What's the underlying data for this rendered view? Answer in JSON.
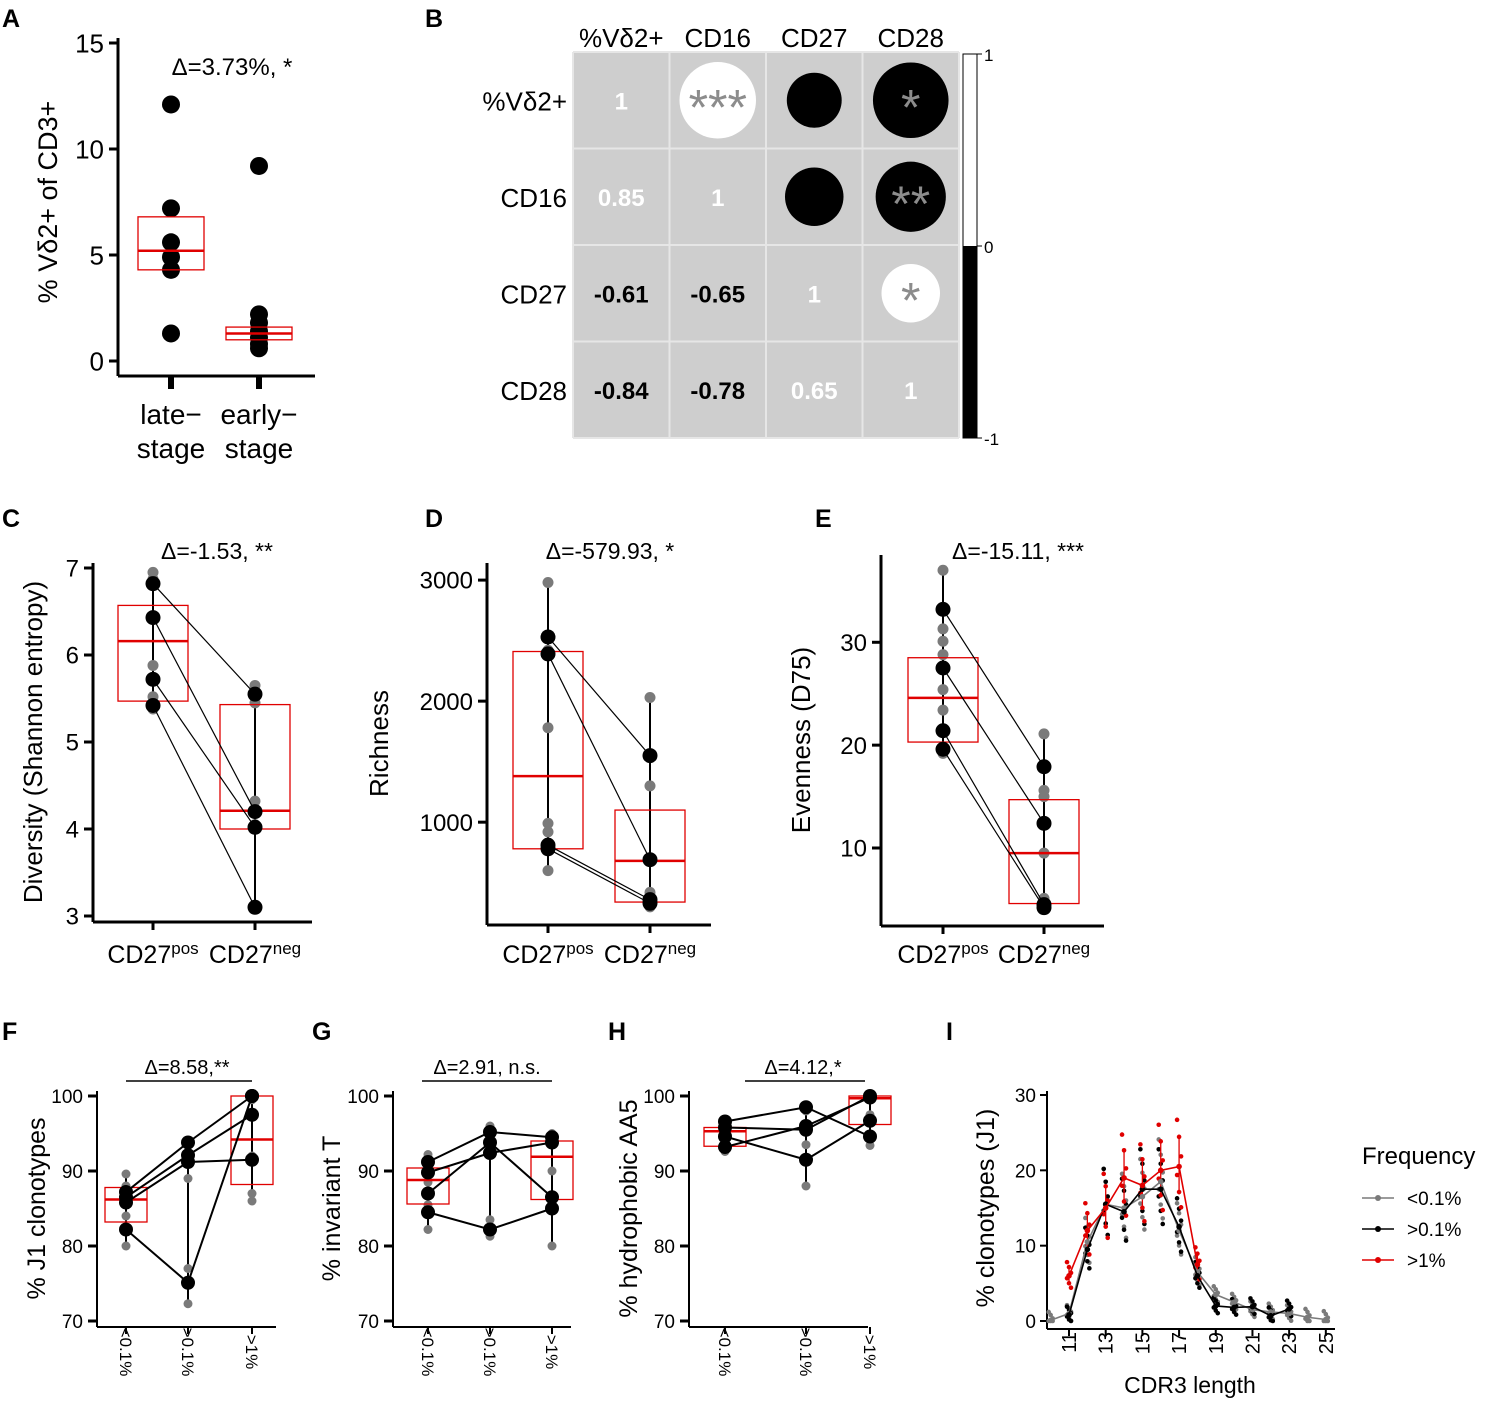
{
  "panels": {
    "A": {
      "label": "A",
      "chart_data": {
        "type": "scatter",
        "ylabel": "% Vδ2+ of CD3+",
        "ylim": [
          0,
          15
        ],
        "yticks": [
          "0",
          "5",
          "10",
          "15"
        ],
        "categories": [
          [
            "late−",
            "stage"
          ],
          [
            "early−",
            "stage"
          ]
        ],
        "annotation": "Δ=3.73%, *",
        "points": [
          [
            12.1,
            7.2,
            5.6,
            4.9,
            4.3,
            1.3
          ],
          [
            9.2,
            2.2,
            1.8,
            1.4,
            1.1,
            0.8,
            0.6
          ]
        ],
        "boxes": [
          {
            "q1": 4.3,
            "median": 5.2,
            "q3": 6.8
          },
          {
            "q1": 1.0,
            "median": 1.3,
            "q3": 1.6
          }
        ]
      }
    },
    "B": {
      "label": "B",
      "chart_data": {
        "type": "heatmap",
        "variables": [
          "%Vδ2+",
          "CD16",
          "CD27",
          "CD28"
        ],
        "upper_matrix": [
          [
            null,
            0.85,
            -0.61,
            -0.84
          ],
          [
            null,
            null,
            -0.65,
            -0.78
          ],
          [
            null,
            null,
            null,
            0.65
          ],
          [
            null,
            null,
            null,
            null
          ]
        ],
        "significance": [
          [
            "",
            "***",
            "",
            "*"
          ],
          [
            "",
            "",
            "",
            "**"
          ],
          [
            "",
            "",
            "",
            "*"
          ],
          [
            "",
            "",
            "",
            ""
          ]
        ],
        "lower_labels": [
          [
            "1",
            "",
            "",
            ""
          ],
          [
            "0.85",
            "1",
            "",
            ""
          ],
          [
            "-0.61",
            "-0.65",
            "1",
            ""
          ],
          [
            "-0.84",
            "-0.78",
            "0.65",
            "1"
          ]
        ],
        "colorbar": {
          "ticks": [
            "1",
            "0",
            "-1"
          ],
          "range": [
            -1,
            1
          ],
          "positive_color": "#ffffff",
          "negative_color": "#000000"
        }
      }
    },
    "C": {
      "label": "C",
      "chart_data": {
        "type": "scatter",
        "ylabel": "Diversity (Shannon entropy)",
        "ylim": [
          3,
          7
        ],
        "yticks": [
          "3",
          "4",
          "5",
          "6",
          "7"
        ],
        "categories": [
          "CD27pos",
          "CD27neg"
        ],
        "annotation": "Δ=-1.53, **",
        "pairs": [
          [
            6.82,
            5.55
          ],
          [
            6.43,
            4.2
          ],
          [
            5.72,
            4.02
          ],
          [
            5.42,
            3.1
          ]
        ],
        "gray": [
          [
            6.95,
            6.87,
            5.88,
            5.52,
            5.38
          ],
          [
            5.65,
            5.45,
            4.32,
            4.22,
            4.05
          ]
        ],
        "errbar": [
          [
            5.4,
            6.95
          ],
          [
            3.1,
            5.58
          ]
        ],
        "boxes": [
          {
            "q1": 5.47,
            "median": 6.16,
            "q3": 6.57
          },
          {
            "q1": 4.0,
            "median": 4.21,
            "q3": 5.43
          }
        ]
      }
    },
    "D": {
      "label": "D",
      "chart_data": {
        "type": "scatter",
        "ylabel": "Richness",
        "ylim": [
          200,
          3100
        ],
        "yticks": [
          "1000",
          "2000",
          "3000"
        ],
        "categories": [
          "CD27pos",
          "CD27neg"
        ],
        "annotation": "Δ=-579.93, *",
        "pairs": [
          [
            2530,
            1550
          ],
          [
            2390,
            690
          ],
          [
            810,
            360
          ],
          [
            780,
            330
          ]
        ],
        "gray": [
          [
            2980,
            2420,
            1780,
            990,
            920,
            600
          ],
          [
            2030,
            1300,
            690,
            420,
            300
          ]
        ],
        "errbar": [
          [
            600,
            2980
          ],
          [
            300,
            2030
          ]
        ],
        "boxes": [
          {
            "q1": 780,
            "median": 1380,
            "q3": 2410
          },
          {
            "q1": 340,
            "median": 680,
            "q3": 1100
          }
        ]
      }
    },
    "E": {
      "label": "E",
      "chart_data": {
        "type": "scatter",
        "ylabel": "Evenness (D75)",
        "ylim": [
          3,
          38
        ],
        "yticks": [
          "10",
          "20",
          "30"
        ],
        "categories": [
          "CD27pos",
          "CD27neg"
        ],
        "annotation": "Δ=-15.11, ***",
        "pairs": [
          [
            33.2,
            17.9
          ],
          [
            27.5,
            12.4
          ],
          [
            21.4,
            4.5
          ],
          [
            19.6,
            4.2
          ]
        ],
        "gray": [
          [
            37.0,
            31.3,
            30.1,
            28.8,
            25.4,
            23.4,
            19.2
          ],
          [
            21.1,
            15.6,
            15.0,
            9.5,
            5.1,
            4.4
          ]
        ],
        "errbar": [
          [
            19.0,
            37.0
          ],
          [
            4.0,
            21.1
          ]
        ],
        "boxes": [
          {
            "q1": 20.3,
            "median": 24.6,
            "q3": 28.5
          },
          {
            "q1": 4.6,
            "median": 9.5,
            "q3": 14.7
          }
        ]
      }
    },
    "F": {
      "label": "F",
      "chart_data": {
        "type": "line",
        "ylabel": "% J1 clonotypes",
        "ylim": [
          70,
          100
        ],
        "yticks": [
          "70",
          "80",
          "90",
          "100"
        ],
        "categories": [
          "<0.1%",
          ">0.1%",
          ">1%"
        ],
        "annotation": "Δ=8.58,**",
        "series": [
          {
            "values": [
              87.2,
              93.8,
              100.0
            ]
          },
          {
            "values": [
              86.5,
              92.1,
              97.5
            ]
          },
          {
            "values": [
              85.8,
              91.2,
              91.5
            ]
          },
          {
            "values": [
              82.2,
              75.1,
              100.0
            ]
          }
        ],
        "gray": [
          [
            89.6,
            88.0,
            86.0,
            85.5,
            84.0,
            80.0
          ],
          [
            93.5,
            91.0,
            77.0,
            72.3,
            89.0
          ],
          [
            99.5,
            97.8,
            92.0,
            87.0,
            86.0
          ]
        ],
        "errbar": [
          [
            80.0,
            89.6
          ],
          [
            72.3,
            93.8
          ],
          [
            86.0,
            100.0
          ]
        ],
        "boxes": [
          {
            "q1": 83.2,
            "median": 86.2,
            "q3": 87.8
          },
          null,
          {
            "q1": 88.2,
            "median": 94.2,
            "q3": 100.0
          }
        ]
      }
    },
    "G": {
      "label": "G",
      "chart_data": {
        "type": "line",
        "ylabel": "% invariant T",
        "ylim": [
          70,
          100
        ],
        "yticks": [
          "70",
          "80",
          "90",
          "100"
        ],
        "categories": [
          "<0.1%",
          ">0.1%",
          ">1%"
        ],
        "annotation": "Δ=2.91, n.s.",
        "series": [
          {
            "values": [
              91.2,
              95.2,
              94.5
            ]
          },
          {
            "values": [
              89.8,
              92.4,
              93.8
            ]
          },
          {
            "values": [
              87.0,
              93.8,
              86.5
            ]
          },
          {
            "values": [
              84.5,
              82.2,
              85.0
            ]
          }
        ],
        "gray": [
          [
            92.2,
            90.5,
            88.5,
            85.5,
            82.2
          ],
          [
            96.0,
            93.0,
            83.5,
            81.3
          ],
          [
            95.0,
            90.0,
            86.0,
            80.0
          ]
        ],
        "errbar": [
          [
            82.2,
            92.2
          ],
          [
            81.3,
            95.2
          ],
          [
            80.0,
            95.0
          ]
        ],
        "boxes": [
          {
            "q1": 85.6,
            "median": 88.8,
            "q3": 90.4
          },
          null,
          {
            "q1": 86.2,
            "median": 91.9,
            "q3": 94.0
          }
        ]
      }
    },
    "H": {
      "label": "H",
      "chart_data": {
        "type": "line",
        "ylabel": "% hydrophobic AA5",
        "ylim": [
          70,
          100
        ],
        "yticks": [
          "70",
          "80",
          "90",
          "100"
        ],
        "categories": [
          "<0.1%",
          ">0.1%",
          ">1%"
        ],
        "annotation": "Δ=4.12,*",
        "series": [
          {
            "values": [
              96.6,
              98.5,
              94.6
            ]
          },
          {
            "values": [
              95.8,
              95.5,
              100.0
            ]
          },
          {
            "values": [
              94.6,
              91.5,
              96.7
            ]
          },
          {
            "values": [
              93.2,
              96.0,
              99.8
            ]
          }
        ],
        "gray": [
          [
            96.8,
            95.2,
            93.5,
            92.6
          ],
          [
            98.0,
            93.5,
            88.0
          ],
          [
            99.5,
            97.5,
            93.4
          ]
        ],
        "errbar": [
          [
            92.6,
            96.8
          ],
          [
            88.0,
            98.5
          ],
          [
            93.4,
            100.0
          ]
        ],
        "boxes": [
          {
            "q1": 93.3,
            "median": 95.3,
            "q3": 95.8
          },
          null,
          {
            "q1": 96.2,
            "median": 99.7,
            "q3": 100.0
          }
        ]
      }
    },
    "I": {
      "label": "I",
      "chart_data": {
        "type": "line",
        "xlabel": "CDR3 length",
        "ylabel": "% clonotypes (J1)",
        "xlim": [
          9.8,
          25.5
        ],
        "ylim": [
          0,
          30
        ],
        "xticks": [
          "11",
          "13",
          "15",
          "17",
          "19",
          "21",
          "23",
          "25"
        ],
        "yticks": [
          "0",
          "10",
          "20",
          "30"
        ],
        "legend_title": "Frequency",
        "legend_position": "right",
        "series": [
          {
            "name": "<0.1%",
            "color": "#7a7a7a",
            "x": [
              10,
              11,
              12,
              13,
              14,
              15,
              16,
              17,
              18,
              19,
              20,
              21,
              22,
              23,
              24,
              25
            ],
            "y": [
              0.1,
              1.0,
              10.5,
              15.5,
              15.0,
              16.5,
              18.5,
              12.0,
              6.5,
              3.5,
              2.5,
              1.5,
              1.2,
              1.0,
              0.5,
              0.2
            ]
          },
          {
            "name": ">0.1%",
            "color": "#000000",
            "x": [
              11,
              12,
              13,
              14,
              15,
              16,
              17,
              18,
              19,
              20,
              21,
              22,
              23
            ],
            "y": [
              0.8,
              9.5,
              15.5,
              14.5,
              17.5,
              17.5,
              12.5,
              6.0,
              2.0,
              1.8,
              1.9,
              0.7,
              1.6
            ]
          },
          {
            "name": ">1%",
            "color": "#e00000",
            "x": [
              11,
              12,
              13,
              14,
              15,
              16,
              17,
              18
            ],
            "y": [
              6.0,
              12.0,
              15.0,
              19.0,
              18.0,
              20.0,
              20.5,
              7.5
            ]
          }
        ]
      }
    }
  }
}
